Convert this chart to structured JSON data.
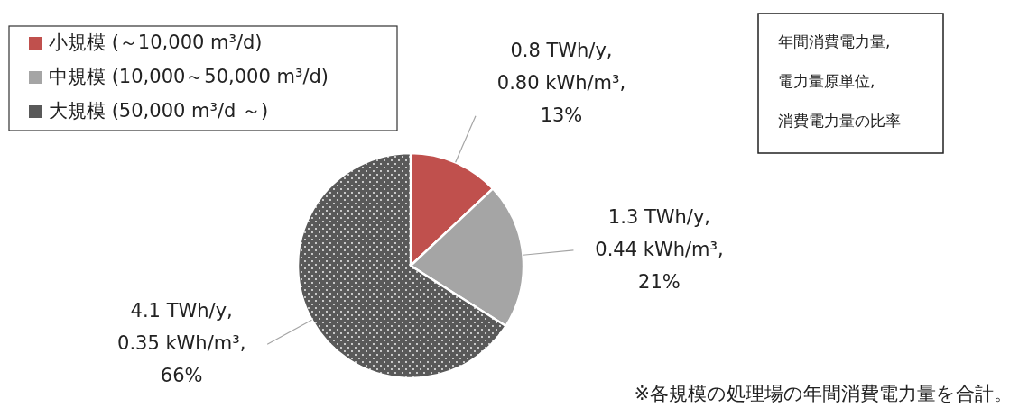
{
  "chart_data": {
    "type": "pie",
    "categories": [
      "小規模 (～10,000 m³/d)",
      "中規模 (10,000～50,000 m³/d)",
      "大規模 (50,000 m³/d ～)"
    ],
    "values": [
      13,
      21,
      66
    ],
    "colors": [
      "#c0504d",
      "#a5a5a5",
      "#595959"
    ],
    "value_labels": [
      "0.8 TWh/y, 0.80 kWh/m³, 13%",
      "1.3 TWh/y, 0.44 kWh/m³, 21%",
      "4.1 TWh/y, 0.35 kWh/m³, 66%"
    ],
    "legend": "top left",
    "annotations": [
      "年間消費電力量,",
      "電力量原単位,",
      "消費電力量の比率",
      "※各規模の処理場の年間消費電力量を合計。"
    ]
  }
}
